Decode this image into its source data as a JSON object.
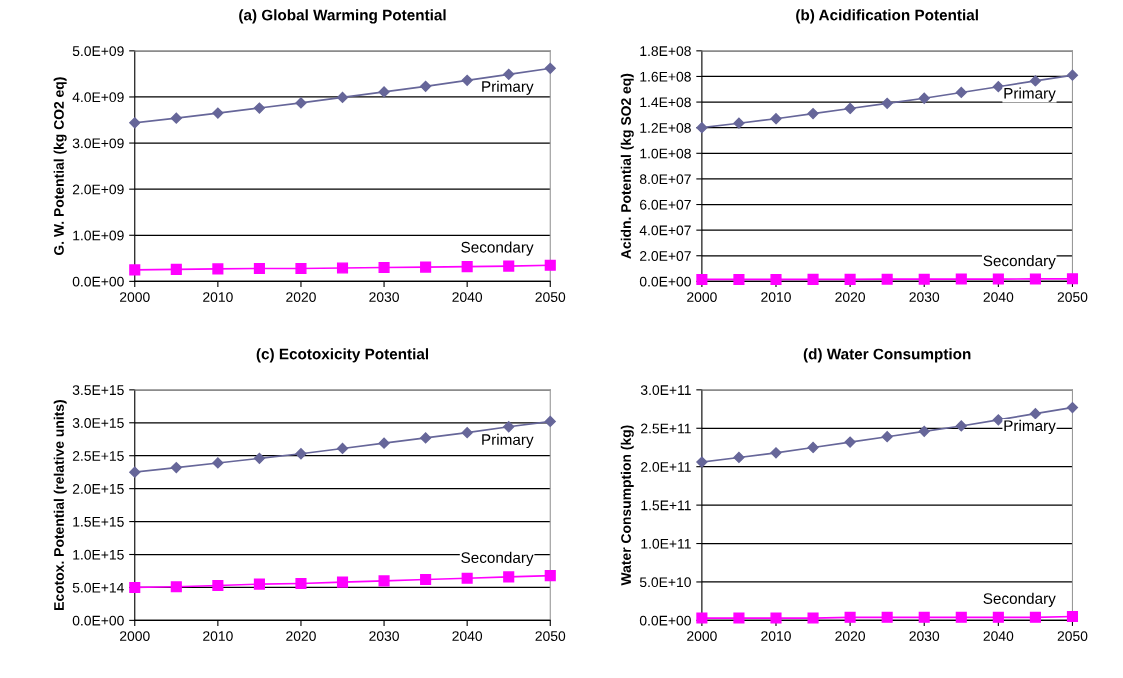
{
  "chart_data": [
    {
      "type": "line",
      "title": "(a) Global Warming Potential",
      "ylabel": "G. W. Potential (kg CO2 eq)",
      "x": [
        2000,
        2005,
        2010,
        2015,
        2020,
        2025,
        2030,
        2035,
        2040,
        2045,
        2050
      ],
      "xlim": [
        2000,
        2050
      ],
      "xticks": [
        2000,
        2010,
        2020,
        2030,
        2040,
        2050
      ],
      "ylim": [
        0,
        5000000000.0
      ],
      "yticks": [
        {
          "value": 0,
          "label": "0.0E+00"
        },
        {
          "value": 1000000000.0,
          "label": "1.0E+09"
        },
        {
          "value": 2000000000.0,
          "label": "2.0E+09"
        },
        {
          "value": 3000000000.0,
          "label": "3.0E+09"
        },
        {
          "value": 4000000000.0,
          "label": "4.0E+09"
        },
        {
          "value": 5000000000.0,
          "label": "5.0E+09"
        }
      ],
      "grid": "y",
      "series": [
        {
          "name": "Primary",
          "color": "#666699",
          "marker": "diamond",
          "values": [
            3440000000.0,
            3540000000.0,
            3650000000.0,
            3760000000.0,
            3870000000.0,
            3990000000.0,
            4110000000.0,
            4230000000.0,
            4360000000.0,
            4490000000.0,
            4620000000.0
          ]
        },
        {
          "name": "Secondary",
          "color": "#ff00ff",
          "marker": "square",
          "values": [
            250000000.0,
            260000000.0,
            270000000.0,
            280000000.0,
            280000000.0,
            290000000.0,
            300000000.0,
            310000000.0,
            320000000.0,
            330000000.0,
            350000000.0
          ]
        }
      ]
    },
    {
      "type": "line",
      "title": "(b) Acidification Potential",
      "ylabel": "Acidn. Potential (kg SO2 eq)",
      "x": [
        2000,
        2005,
        2010,
        2015,
        2020,
        2025,
        2030,
        2035,
        2040,
        2045,
        2050
      ],
      "xlim": [
        2000,
        2050
      ],
      "xticks": [
        2000,
        2010,
        2020,
        2030,
        2040,
        2050
      ],
      "ylim": [
        0,
        180000000.0
      ],
      "yticks": [
        {
          "value": 0,
          "label": "0.0E+00"
        },
        {
          "value": 20000000.0,
          "label": "2.0E+07"
        },
        {
          "value": 40000000.0,
          "label": "4.0E+07"
        },
        {
          "value": 60000000.0,
          "label": "6.0E+07"
        },
        {
          "value": 80000000.0,
          "label": "8.0E+07"
        },
        {
          "value": 100000000.0,
          "label": "1.0E+08"
        },
        {
          "value": 120000000.0,
          "label": "1.2E+08"
        },
        {
          "value": 140000000.0,
          "label": "1.4E+08"
        },
        {
          "value": 160000000.0,
          "label": "1.6E+08"
        },
        {
          "value": 180000000.0,
          "label": "1.8E+08"
        }
      ],
      "grid": "y",
      "series": [
        {
          "name": "Primary",
          "color": "#666699",
          "marker": "diamond",
          "values": [
            120000000.0,
            123500000.0,
            127000000.0,
            131000000.0,
            135000000.0,
            139000000.0,
            143000000.0,
            147500000.0,
            152000000.0,
            156500000.0,
            161000000.0
          ]
        },
        {
          "name": "Secondary",
          "color": "#ff00ff",
          "marker": "square",
          "values": [
            1500000.0,
            1500000.0,
            1500000.0,
            1600000.0,
            1600000.0,
            1700000.0,
            1700000.0,
            1800000.0,
            1800000.0,
            1900000.0,
            2000000.0
          ]
        }
      ]
    },
    {
      "type": "line",
      "title": "(c) Ecotoxicity Potential",
      "ylabel": "Ecotox. Potential (relative units)",
      "x": [
        2000,
        2005,
        2010,
        2015,
        2020,
        2025,
        2030,
        2035,
        2040,
        2045,
        2050
      ],
      "xlim": [
        2000,
        2050
      ],
      "xticks": [
        2000,
        2010,
        2020,
        2030,
        2040,
        2050
      ],
      "ylim": [
        0,
        3500000000000000.0
      ],
      "yticks": [
        {
          "value": 0,
          "label": "0.0E+00"
        },
        {
          "value": 500000000000000.0,
          "label": "5.0E+14"
        },
        {
          "value": 1000000000000000.0,
          "label": "1.0E+15"
        },
        {
          "value": 1500000000000000.0,
          "label": "1.5E+15"
        },
        {
          "value": 2000000000000000.0,
          "label": "2.0E+15"
        },
        {
          "value": 2500000000000000.0,
          "label": "2.5E+15"
        },
        {
          "value": 3000000000000000.0,
          "label": "3.0E+15"
        },
        {
          "value": 3500000000000000.0,
          "label": "3.5E+15"
        }
      ],
      "grid": "y",
      "series": [
        {
          "name": "Primary",
          "color": "#666699",
          "marker": "diamond",
          "values": [
            2250000000000000.0,
            2320000000000000.0,
            2390000000000000.0,
            2460000000000000.0,
            2530000000000000.0,
            2610000000000000.0,
            2690000000000000.0,
            2770000000000000.0,
            2850000000000000.0,
            2940000000000000.0,
            3020000000000000.0
          ]
        },
        {
          "name": "Secondary",
          "color": "#ff00ff",
          "marker": "square",
          "values": [
            500000000000000.0,
            510000000000000.0,
            530000000000000.0,
            550000000000000.0,
            560000000000000.0,
            580000000000000.0,
            600000000000000.0,
            620000000000000.0,
            640000000000000.0,
            660000000000000.0,
            680000000000000.0
          ]
        }
      ]
    },
    {
      "type": "line",
      "title": "(d) Water Consumption",
      "ylabel": "Water Consumption (kg)",
      "x": [
        2000,
        2005,
        2010,
        2015,
        2020,
        2025,
        2030,
        2035,
        2040,
        2045,
        2050
      ],
      "xlim": [
        2000,
        2050
      ],
      "xticks": [
        2000,
        2010,
        2020,
        2030,
        2040,
        2050
      ],
      "ylim": [
        0,
        300000000000.0
      ],
      "yticks": [
        {
          "value": 0,
          "label": "0.0E+00"
        },
        {
          "value": 50000000000.0,
          "label": "5.0E+10"
        },
        {
          "value": 100000000000.0,
          "label": "1.0E+11"
        },
        {
          "value": 150000000000.0,
          "label": "1.5E+11"
        },
        {
          "value": 200000000000.0,
          "label": "2.0E+11"
        },
        {
          "value": 250000000000.0,
          "label": "2.5E+11"
        },
        {
          "value": 300000000000.0,
          "label": "3.0E+11"
        }
      ],
      "grid": "y",
      "series": [
        {
          "name": "Primary",
          "color": "#666699",
          "marker": "diamond",
          "values": [
            206000000000.0,
            212000000000.0,
            218000000000.0,
            225000000000.0,
            232000000000.0,
            239000000000.0,
            246000000000.0,
            253000000000.0,
            261000000000.0,
            269000000000.0,
            277000000000.0
          ]
        },
        {
          "name": "Secondary",
          "color": "#ff00ff",
          "marker": "square",
          "values": [
            3000000000.0,
            3000000000.0,
            3000000000.0,
            3000000000.0,
            4000000000.0,
            4000000000.0,
            4000000000.0,
            4000000000.0,
            4000000000.0,
            4000000000.0,
            5000000000.0
          ]
        }
      ]
    }
  ]
}
